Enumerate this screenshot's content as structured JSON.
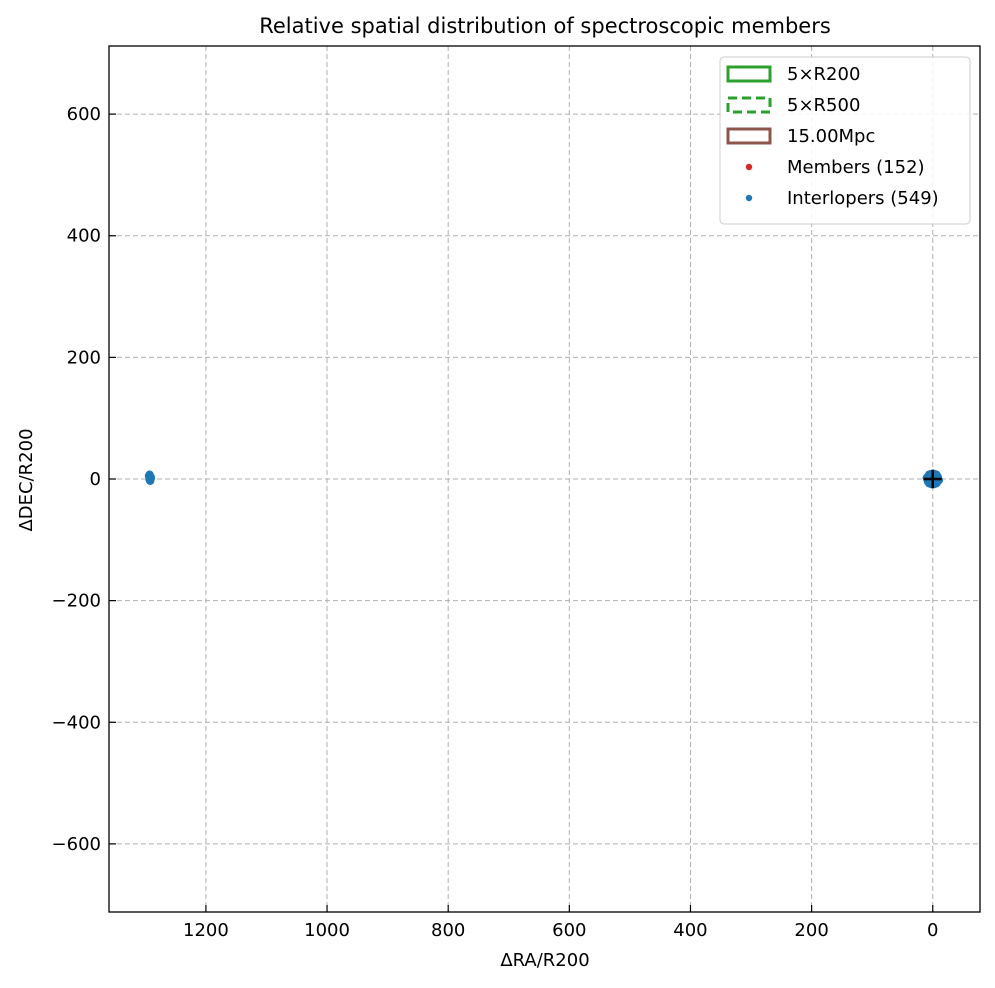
{
  "chart_data": {
    "type": "scatter",
    "title": "Relative spatial distribution of spectroscopic members",
    "xlabel": "ΔRA/R200",
    "ylabel": "ΔDEC/R200",
    "xlim": [
      1360,
      -78
    ],
    "ylim": [
      -712,
      712
    ],
    "x_inverted": true,
    "xticks": [
      1200,
      1000,
      800,
      600,
      400,
      200,
      0
    ],
    "yticks": [
      600,
      400,
      200,
      0,
      -200,
      -400,
      -600
    ],
    "xtick_labels": [
      "1200",
      "1000",
      "800",
      "600",
      "400",
      "200",
      "0"
    ],
    "ytick_labels": [
      "600",
      "400",
      "200",
      "0",
      "−200",
      "−400",
      "−600"
    ],
    "grid": true,
    "legend_position": "top-right",
    "legend": [
      {
        "label": "5×R200",
        "kind": "rect-solid",
        "color": "#2ca02c"
      },
      {
        "label": "5×R500",
        "kind": "rect-dashed",
        "color": "#2ca02c"
      },
      {
        "label": "15.00Mpc",
        "kind": "rect-solid",
        "color": "#8c564b"
      },
      {
        "label": "Members (152)",
        "kind": "dot",
        "color": "#d62728"
      },
      {
        "label": "Interlopers (549)",
        "kind": "dot",
        "color": "#1f77b4"
      }
    ],
    "center_marker": {
      "x": 0,
      "y": 0,
      "symbol": "+",
      "color": "#000000"
    },
    "series": [
      {
        "name": "Members (152)",
        "color": "#d62728",
        "points": [
          [
            0.5,
            0.5
          ],
          [
            -0.8,
            0.3
          ],
          [
            1.1,
            -0.6
          ],
          [
            -0.4,
            -1.0
          ],
          [
            0.2,
            1.2
          ],
          [
            1.6,
            0.9
          ],
          [
            -1.5,
            -0.4
          ],
          [
            0.9,
            1.8
          ],
          [
            -1.2,
            1.4
          ],
          [
            0.0,
            -1.7
          ]
        ]
      },
      {
        "name": "Interlopers (549)",
        "color": "#1f77b4",
        "points": [
          [
            9,
            0
          ],
          [
            8,
            4
          ],
          [
            6,
            7
          ],
          [
            3,
            8
          ],
          [
            0,
            9
          ],
          [
            -3,
            8
          ],
          [
            -6,
            7
          ],
          [
            -8,
            4
          ],
          [
            -9,
            0
          ],
          [
            -8,
            -4
          ],
          [
            -6,
            -7
          ],
          [
            -3,
            -8
          ],
          [
            0,
            -9
          ],
          [
            3,
            -8
          ],
          [
            6,
            -7
          ],
          [
            8,
            -4
          ],
          [
            6,
            0
          ],
          [
            4,
            4
          ],
          [
            0,
            6
          ],
          [
            -4,
            4
          ],
          [
            -6,
            0
          ],
          [
            -4,
            -4
          ],
          [
            0,
            -6
          ],
          [
            4,
            -4
          ],
          [
            3,
            1
          ],
          [
            -2,
            2
          ],
          [
            -3,
            -1
          ],
          [
            2,
            -3
          ],
          [
            1,
            3
          ],
          [
            -1,
            -3
          ],
          [
            10,
            2
          ],
          [
            -10,
            -2
          ],
          [
            7,
            -2
          ],
          [
            -7,
            2
          ],
          [
            1293,
            7
          ],
          [
            1292,
            4
          ],
          [
            1291,
            1
          ],
          [
            1293,
            -1
          ],
          [
            1292,
            -3
          ],
          [
            1294,
            5
          ],
          [
            1291,
            3
          ],
          [
            1293,
            2
          ]
        ]
      }
    ]
  }
}
